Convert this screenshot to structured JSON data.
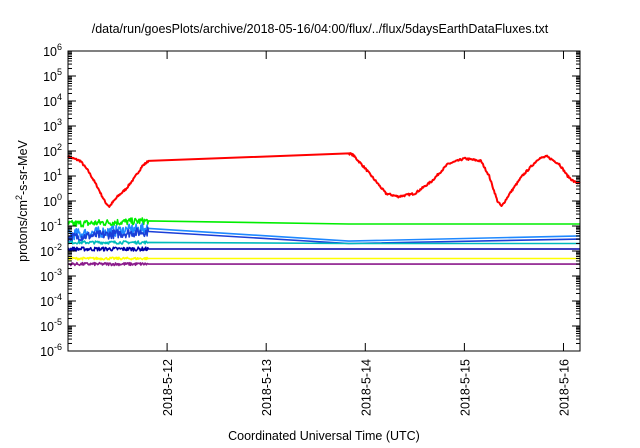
{
  "chart_data": {
    "type": "line",
    "title": "/data/run/goesPlots/archive/2018-05-16/04:00/flux/../flux/5daysEarthDataFluxes.txt",
    "xlabel": "Coordinated Universal Time (UTC)",
    "ylabel_base": "protons/cm",
    "ylabel_sup": "2",
    "ylabel_rest": "-s-sr-MeV",
    "yscale": "log",
    "ylim": [
      1e-06,
      1000000.0
    ],
    "xlim": [
      "2018-05-11",
      "2018-05-16T04:00"
    ],
    "y_ticks": [
      {
        "base": "10",
        "exp": "-6",
        "value": 1e-06
      },
      {
        "base": "10",
        "exp": "-5",
        "value": 1e-05
      },
      {
        "base": "10",
        "exp": "-4",
        "value": 0.0001
      },
      {
        "base": "10",
        "exp": "-3",
        "value": 0.001
      },
      {
        "base": "10",
        "exp": "-2",
        "value": 0.01
      },
      {
        "base": "10",
        "exp": "-1",
        "value": 0.1
      },
      {
        "base": "10",
        "exp": "0",
        "value": 1
      },
      {
        "base": "10",
        "exp": "1",
        "value": 10
      },
      {
        "base": "10",
        "exp": "2",
        "value": 100
      },
      {
        "base": "10",
        "exp": "3",
        "value": 1000
      },
      {
        "base": "10",
        "exp": "4",
        "value": 10000
      },
      {
        "base": "10",
        "exp": "5",
        "value": 100000
      },
      {
        "base": "10",
        "exp": "6",
        "value": 1000000
      }
    ],
    "x_ticks": [
      {
        "label": "2018-5-12",
        "value": "2018-05-12"
      },
      {
        "label": "2018-5-13",
        "value": "2018-05-13"
      },
      {
        "label": "2018-5-14",
        "value": "2018-05-14"
      },
      {
        "label": "2018-5-15",
        "value": "2018-05-15"
      },
      {
        "label": "2018-5-16",
        "value": "2018-05-16"
      }
    ],
    "series": [
      {
        "color": "#ff0000",
        "noise": 0.04,
        "points": [
          [
            "2018-05-11T00:00",
            60
          ],
          [
            "2018-05-11T03:00",
            40
          ],
          [
            "2018-05-11T05:00",
            15
          ],
          [
            "2018-05-11T07:00",
            4
          ],
          [
            "2018-05-11T09:00",
            0.9
          ],
          [
            "2018-05-11T10:00",
            0.6
          ],
          [
            "2018-05-11T12:00",
            1.5
          ],
          [
            "2018-05-11T14:00",
            3
          ],
          [
            "2018-05-11T16:00",
            8
          ],
          [
            "2018-05-11T18:00",
            25
          ],
          [
            "2018-05-11T19:30",
            40
          ],
          [
            "2018-05-13T20:00",
            80
          ],
          [
            "2018-05-13T21:00",
            70
          ],
          [
            "2018-05-14T00:00",
            20
          ],
          [
            "2018-05-14T03:00",
            5
          ],
          [
            "2018-05-14T05:00",
            2
          ],
          [
            "2018-05-14T08:00",
            1.5
          ],
          [
            "2018-05-14T12:00",
            2
          ],
          [
            "2018-05-14T16:00",
            6
          ],
          [
            "2018-05-14T20:00",
            30
          ],
          [
            "2018-05-15T00:00",
            50
          ],
          [
            "2018-05-15T04:00",
            40
          ],
          [
            "2018-05-15T06:00",
            10
          ],
          [
            "2018-05-15T08:00",
            1
          ],
          [
            "2018-05-15T09:00",
            0.6
          ],
          [
            "2018-05-15T11:00",
            2
          ],
          [
            "2018-05-15T14:00",
            10
          ],
          [
            "2018-05-15T18:00",
            50
          ],
          [
            "2018-05-15T20:00",
            60
          ],
          [
            "2018-05-15T23:00",
            30
          ],
          [
            "2018-05-16T01:00",
            10
          ],
          [
            "2018-05-16T02:30",
            6
          ],
          [
            "2018-05-16T04:00",
            5
          ]
        ]
      },
      {
        "color": "#00ee00",
        "noise": 0.14,
        "points": [
          [
            "2018-05-11T00:00",
            0.12
          ],
          [
            "2018-05-11T19:30",
            0.16
          ],
          [
            "2018-05-13T20:00",
            0.12
          ],
          [
            "2018-05-16T04:00",
            0.12
          ]
        ]
      },
      {
        "color": "#1e88ff",
        "noise": 0.22,
        "points": [
          [
            "2018-05-11T00:00",
            0.045
          ],
          [
            "2018-05-11T19:30",
            0.08
          ],
          [
            "2018-05-13T20:00",
            0.025
          ],
          [
            "2018-05-16T04:00",
            0.04
          ]
        ]
      },
      {
        "color": "#1a3fd8",
        "noise": 0.18,
        "points": [
          [
            "2018-05-11T00:00",
            0.035
          ],
          [
            "2018-05-11T19:30",
            0.06
          ],
          [
            "2018-05-13T20:00",
            0.02
          ],
          [
            "2018-05-16T04:00",
            0.03
          ]
        ]
      },
      {
        "color": "#00bbbb",
        "noise": 0.06,
        "points": [
          [
            "2018-05-11T00:00",
            0.022
          ],
          [
            "2018-05-11T19:30",
            0.022
          ],
          [
            "2018-05-13T20:00",
            0.02
          ],
          [
            "2018-05-16T04:00",
            0.02
          ]
        ]
      },
      {
        "color": "#0000aa",
        "noise": 0.08,
        "points": [
          [
            "2018-05-11T00:00",
            0.012
          ],
          [
            "2018-05-11T19:30",
            0.012
          ],
          [
            "2018-05-13T20:00",
            0.012
          ],
          [
            "2018-05-16T04:00",
            0.012
          ]
        ]
      },
      {
        "color": "#ffff00",
        "noise": 0.05,
        "points": [
          [
            "2018-05-11T00:00",
            0.005
          ],
          [
            "2018-05-11T19:30",
            0.005
          ],
          [
            "2018-05-13T20:00",
            0.005
          ],
          [
            "2018-05-16T04:00",
            0.005
          ]
        ]
      },
      {
        "color": "#8b1a8b",
        "noise": 0.06,
        "points": [
          [
            "2018-05-11T00:00",
            0.003
          ],
          [
            "2018-05-11T19:30",
            0.003
          ],
          [
            "2018-05-13T20:00",
            0.003
          ],
          [
            "2018-05-16T04:00",
            0.003
          ]
        ]
      }
    ],
    "grid": false
  }
}
